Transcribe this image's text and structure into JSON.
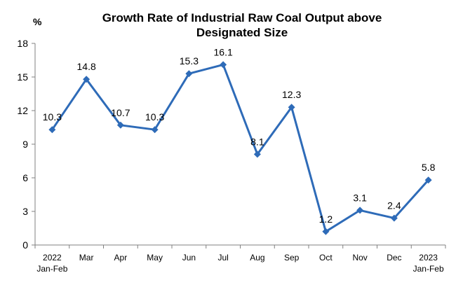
{
  "chart_data": {
    "type": "line",
    "title_lines": [
      "Growth Rate of Industrial Raw Coal Output above",
      "Designated Size"
    ],
    "unit": "%",
    "categories": [
      [
        "2022",
        "Jan-Feb"
      ],
      [
        "Mar"
      ],
      [
        "Apr"
      ],
      [
        "May"
      ],
      [
        "Jun"
      ],
      [
        "Jul"
      ],
      [
        "Aug"
      ],
      [
        "Sep"
      ],
      [
        "Oct"
      ],
      [
        "Nov"
      ],
      [
        "Dec"
      ],
      [
        "2023",
        "Jan-Feb"
      ]
    ],
    "values": [
      10.3,
      14.8,
      10.7,
      10.3,
      15.3,
      16.1,
      8.1,
      12.3,
      1.2,
      3.1,
      2.4,
      5.8
    ],
    "value_labels": [
      "10.3",
      "14.8",
      "10.7",
      "10.3",
      "15.3",
      "16.1",
      "8.1",
      "12.3",
      "1.2",
      "3.1",
      "2.4",
      "5.8"
    ],
    "yticks": [
      "0",
      "3",
      "6",
      "9",
      "12",
      "15",
      "18"
    ],
    "ylim": [
      0,
      18
    ],
    "grid": false,
    "line_color": "#2e6bb8"
  }
}
